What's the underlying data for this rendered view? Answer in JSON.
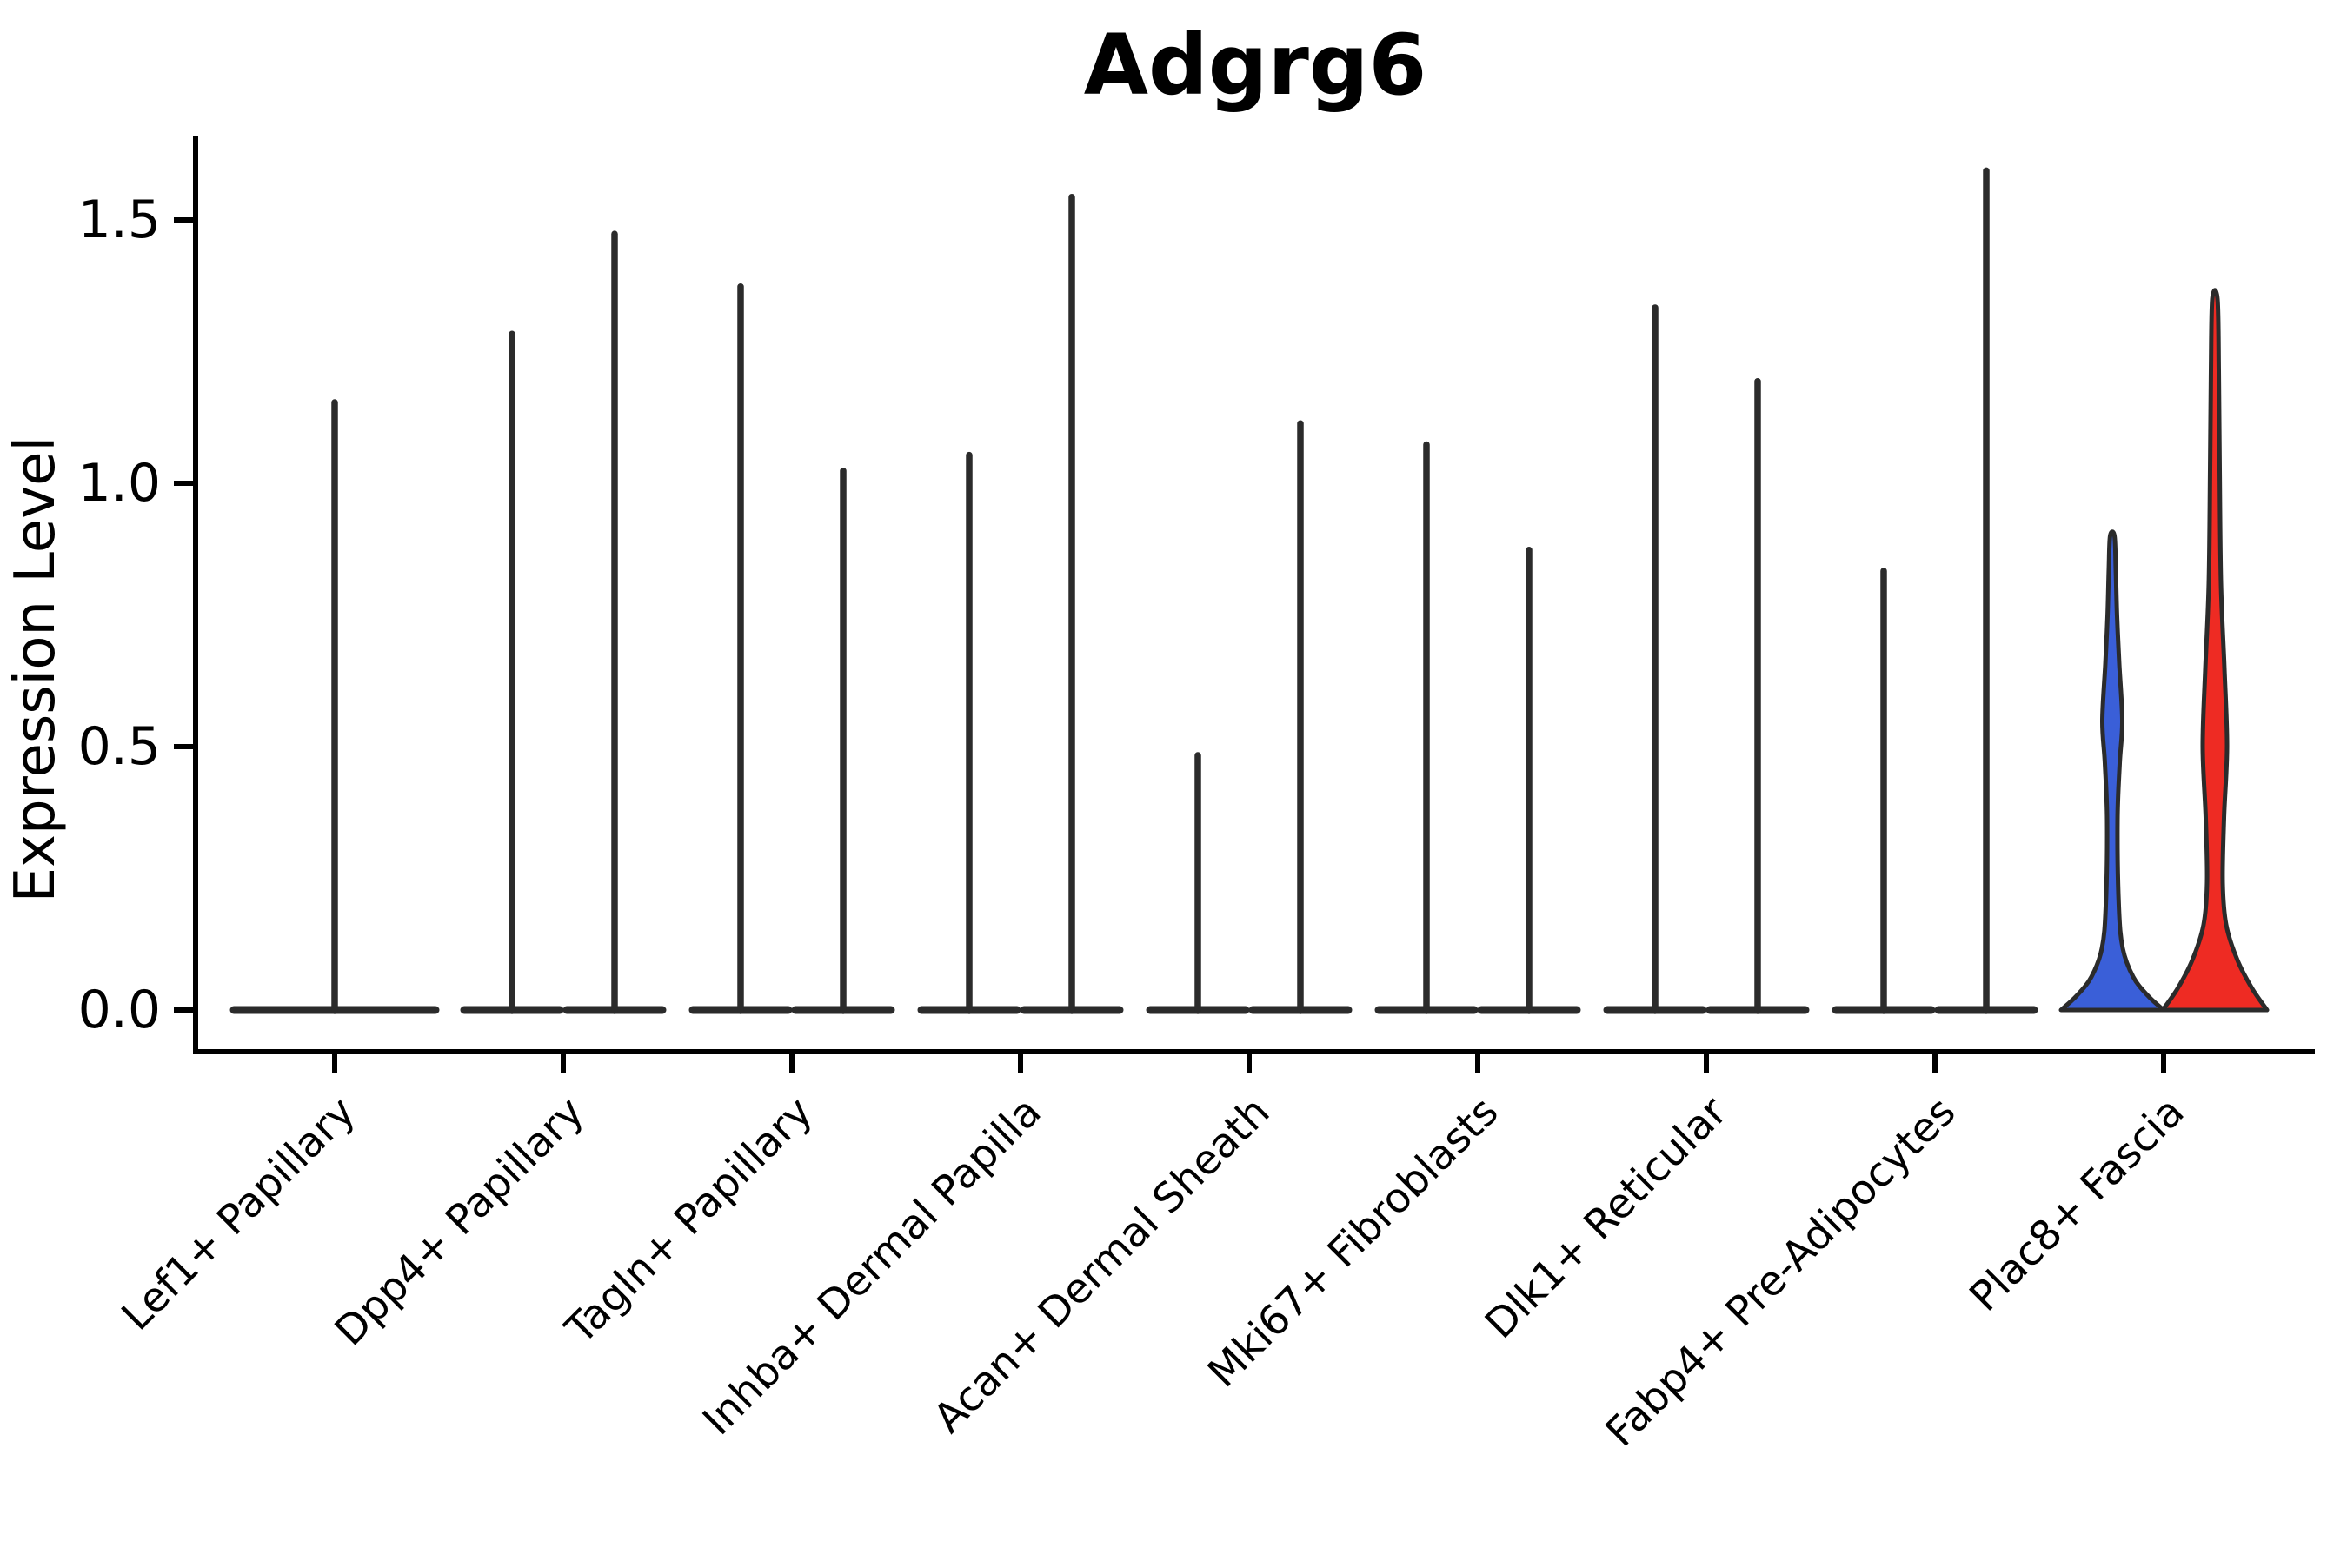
{
  "title": "Adgrg6",
  "y_axis": {
    "label": "Expression Level",
    "ticks": [
      "0.0",
      "0.5",
      "1.0",
      "1.5"
    ],
    "tick_values": [
      0.0,
      0.5,
      1.0,
      1.5
    ]
  },
  "colors": {
    "group_blue_fill": "#3A5FD8",
    "group_red_fill": "#EE2B23",
    "violin_outline": "#2B2B2B",
    "axis": "#000000"
  },
  "chart_data": {
    "type": "violin",
    "title": "Adgrg6",
    "xlabel": "",
    "ylabel": "Expression Level",
    "ylim": [
      -0.08,
      1.66
    ],
    "grid": false,
    "legend": "none",
    "categories": [
      "Lef1+ Papillary",
      "Dpp4+ Papillary",
      "Tagln+ Papillary",
      "Inhba+ Dermal Papilla",
      "Acan+ Dermal Sheath",
      "Mki67+ Fibroblasts",
      "Dlk1+ Reticular",
      "Fabp4+ Pre-Adipocytes",
      "Plac8+ Fascia"
    ],
    "description": "Violin plot of Adgrg6 expression per fibroblast cluster. Most violins collapse to a near-zero flat base with a thin density spike up to the max expressed cell. The last cluster (Plac8+ Fascia) shows two filled violins (blue and red groups) with visible density mass.",
    "violins": [
      {
        "category": "Lef1+ Papillary",
        "items": [
          {
            "position": "center",
            "max_expression": 1.16,
            "style": "spike",
            "fill": "none"
          }
        ]
      },
      {
        "category": "Dpp4+ Papillary",
        "items": [
          {
            "position": "left",
            "max_expression": 1.29,
            "style": "spike",
            "fill": "none"
          },
          {
            "position": "right",
            "max_expression": 1.48,
            "style": "spike",
            "fill": "none"
          }
        ]
      },
      {
        "category": "Tagln+ Papillary",
        "items": [
          {
            "position": "left",
            "max_expression": 1.38,
            "style": "spike",
            "fill": "none"
          },
          {
            "position": "right",
            "max_expression": 1.03,
            "style": "spike",
            "fill": "none"
          }
        ]
      },
      {
        "category": "Inhba+ Dermal Papilla",
        "items": [
          {
            "position": "left",
            "max_expression": 1.06,
            "style": "spike",
            "fill": "none"
          },
          {
            "position": "right",
            "max_expression": 1.55,
            "style": "spike",
            "fill": "none"
          }
        ]
      },
      {
        "category": "Acan+ Dermal Sheath",
        "items": [
          {
            "position": "left",
            "max_expression": 0.49,
            "style": "spike",
            "fill": "none"
          },
          {
            "position": "right",
            "max_expression": 1.12,
            "style": "spike",
            "fill": "none"
          }
        ]
      },
      {
        "category": "Mki67+ Fibroblasts",
        "items": [
          {
            "position": "left",
            "max_expression": 1.08,
            "style": "spike",
            "fill": "none"
          },
          {
            "position": "right",
            "max_expression": 0.88,
            "style": "spike",
            "fill": "none"
          }
        ]
      },
      {
        "category": "Dlk1+ Reticular",
        "items": [
          {
            "position": "left",
            "max_expression": 1.34,
            "style": "spike",
            "fill": "none"
          },
          {
            "position": "right",
            "max_expression": 1.2,
            "style": "spike",
            "fill": "none"
          }
        ]
      },
      {
        "category": "Fabp4+ Pre-Adipocytes",
        "items": [
          {
            "position": "left",
            "max_expression": 0.84,
            "style": "spike",
            "fill": "none"
          },
          {
            "position": "right",
            "max_expression": 1.6,
            "style": "spike",
            "fill": "none"
          }
        ]
      },
      {
        "category": "Plac8+ Fascia",
        "items": [
          {
            "position": "left",
            "max_expression": 0.9,
            "style": "violin",
            "fill": "#3A5FD8",
            "group": "blue"
          },
          {
            "position": "right",
            "max_expression": 1.35,
            "style": "violin",
            "fill": "#EE2B23",
            "group": "red"
          }
        ]
      }
    ]
  }
}
